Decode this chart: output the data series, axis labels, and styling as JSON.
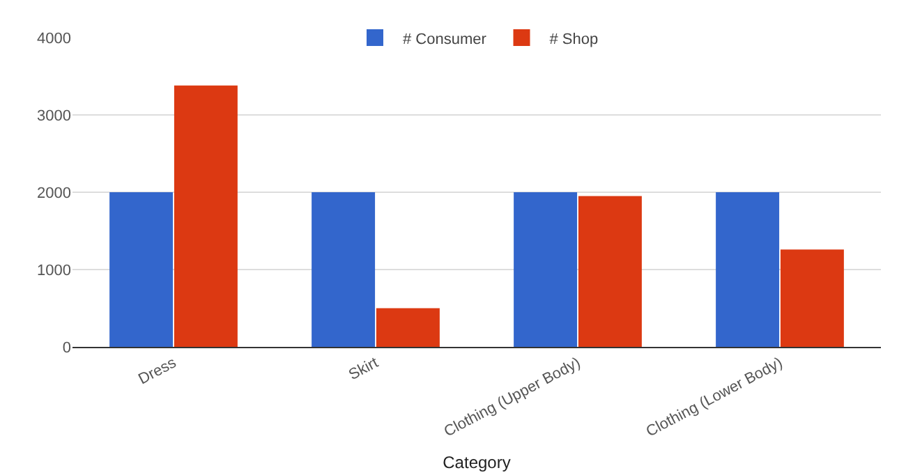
{
  "chart_data": {
    "type": "bar",
    "xlabel": "Category",
    "categories": [
      "Dress",
      "Skirt",
      "Clothing (Upper Body)",
      "Clothing (Lower Body)"
    ],
    "series": [
      {
        "name": "# Consumer",
        "color": "#3366cc",
        "values": [
          2000,
          2000,
          2000,
          2000
        ]
      },
      {
        "name": "# Shop",
        "color": "#dc3912",
        "values": [
          3380,
          500,
          1950,
          1260
        ]
      }
    ],
    "ylim": [
      0,
      4000
    ],
    "yticks": [
      0,
      1000,
      2000,
      3000,
      4000
    ],
    "grid": "y",
    "legend": "top"
  }
}
